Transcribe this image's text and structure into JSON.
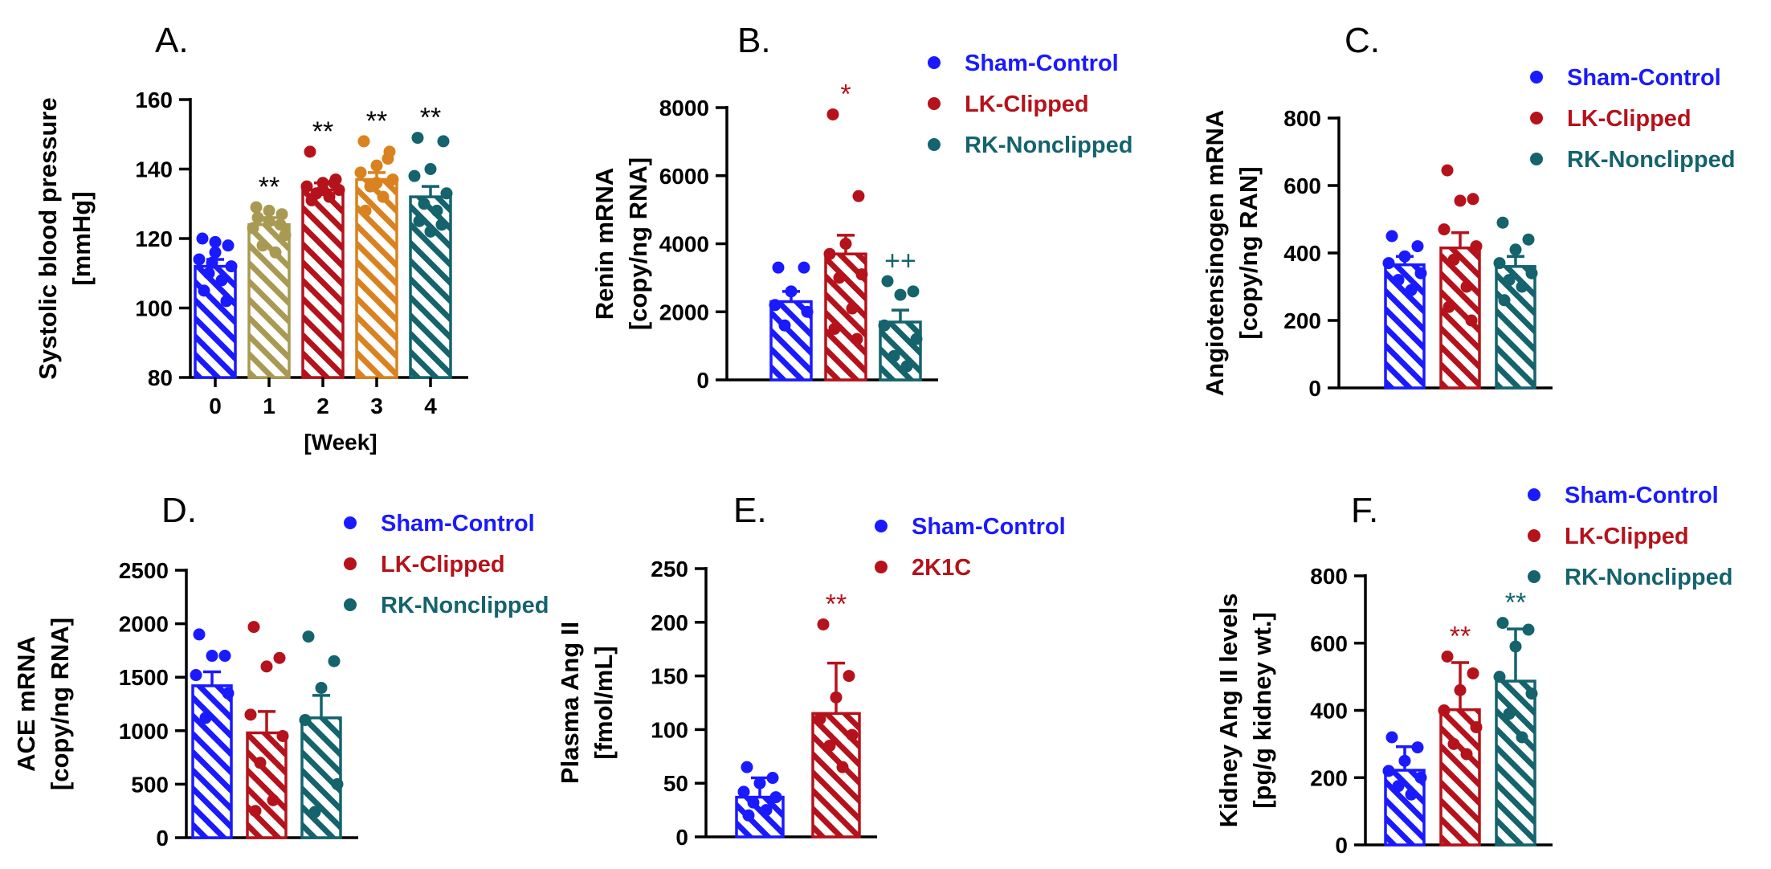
{
  "chart_data": [
    {
      "id": "A",
      "type": "bar",
      "panel_label": "A.",
      "ylabel_lines": [
        "Systolic blood pressure",
        "[mmHg]"
      ],
      "xlabel": "[Week]",
      "ylim": [
        80,
        160
      ],
      "yticks": [
        80,
        100,
        120,
        140,
        160
      ],
      "categories": [
        "0",
        "1",
        "2",
        "3",
        "4"
      ],
      "colors": [
        "#1a1aff",
        "#a89a52",
        "#b5121b",
        "#d9821f",
        "#14636d"
      ],
      "values": [
        112,
        124,
        134,
        137,
        132
      ],
      "errors": [
        2,
        2,
        2,
        2,
        3
      ],
      "points": [
        [
          120,
          118,
          116,
          114,
          112,
          110,
          108,
          105,
          102,
          119,
          113
        ],
        [
          129,
          127,
          125,
          123,
          121,
          118,
          116,
          126,
          124,
          128
        ],
        [
          145,
          137,
          136,
          135,
          134,
          133,
          132,
          131,
          136,
          134
        ],
        [
          148,
          145,
          141,
          139,
          137,
          135,
          132,
          128,
          143,
          136
        ],
        [
          149,
          148,
          140,
          138,
          133,
          130,
          128,
          125,
          124,
          122
        ]
      ],
      "annotations": [
        "",
        "**",
        "**",
        "**",
        "**"
      ],
      "annotation_colors": [
        "#000000",
        "#000000",
        "#000000",
        "#000000",
        "#000000"
      ],
      "legend": []
    },
    {
      "id": "B",
      "type": "bar",
      "panel_label": "B.",
      "ylabel_lines": [
        "Renin mRNA",
        "[copy/ng RNA]"
      ],
      "xlabel": "",
      "ylim": [
        0,
        8000
      ],
      "yticks": [
        0,
        2000,
        4000,
        6000,
        8000
      ],
      "categories": [
        "Sham-Control",
        "LK-Clipped",
        "RK-Nonclipped"
      ],
      "colors": [
        "#1a1aff",
        "#b5121b",
        "#14636d"
      ],
      "values": [
        2300,
        3700,
        1700
      ],
      "errors": [
        300,
        550,
        350
      ],
      "points": [
        [
          3300,
          3300,
          2600,
          2200,
          2000,
          1600
        ],
        [
          7800,
          5400,
          4000,
          3700,
          3100,
          3000,
          2100,
          1500,
          1200
        ],
        [
          2900,
          2600,
          2500,
          1600,
          1200,
          700,
          400
        ]
      ],
      "annotations": [
        "",
        "*",
        "++"
      ],
      "annotation_colors": [
        "#1a1aff",
        "#b5121b",
        "#14636d"
      ],
      "legend": [
        "Sham-Control",
        "LK-Clipped",
        "RK-Nonclipped"
      ]
    },
    {
      "id": "C",
      "type": "bar",
      "panel_label": "C.",
      "ylabel_lines": [
        "Angiotensinogen mRNA",
        "[copy/ng RAN]"
      ],
      "xlabel": "",
      "ylim": [
        0,
        800
      ],
      "yticks": [
        0,
        200,
        400,
        600,
        800
      ],
      "categories": [
        "Sham-Control",
        "LK-Clipped",
        "RK-Nonclipped"
      ],
      "colors": [
        "#1a1aff",
        "#b5121b",
        "#14636d"
      ],
      "values": [
        365,
        415,
        360
      ],
      "errors": [
        25,
        45,
        30
      ],
      "points": [
        [
          450,
          420,
          390,
          370,
          340,
          320,
          290
        ],
        [
          645,
          560,
          555,
          470,
          420,
          380,
          300,
          240,
          200
        ],
        [
          490,
          440,
          410,
          370,
          340,
          320,
          300,
          260
        ]
      ],
      "annotations": [
        "",
        "",
        ""
      ],
      "annotation_colors": [
        "#1a1aff",
        "#b5121b",
        "#14636d"
      ],
      "legend": [
        "Sham-Control",
        "LK-Clipped",
        "RK-Nonclipped"
      ]
    },
    {
      "id": "D",
      "type": "bar",
      "panel_label": "D.",
      "ylabel_lines": [
        "ACE mRNA",
        "[copy/ng RNA]"
      ],
      "xlabel": "",
      "ylim": [
        0,
        2500
      ],
      "yticks": [
        0,
        500,
        1000,
        1500,
        2000,
        2500
      ],
      "categories": [
        "Sham-Control",
        "LK-Clipped",
        "RK-Nonclipped"
      ],
      "colors": [
        "#1a1aff",
        "#b5121b",
        "#14636d"
      ],
      "values": [
        1420,
        980,
        1120
      ],
      "errors": [
        130,
        200,
        210
      ],
      "points": [
        [
          1900,
          1700,
          1700,
          1520,
          1350,
          1120
        ],
        [
          1970,
          1680,
          1600,
          1150,
          950,
          700,
          350,
          250
        ],
        [
          1880,
          1650,
          1400,
          1100,
          500,
          240
        ]
      ],
      "annotations": [
        "",
        "",
        ""
      ],
      "annotation_colors": [
        "#1a1aff",
        "#b5121b",
        "#14636d"
      ],
      "legend": [
        "Sham-Control",
        "LK-Clipped",
        "RK-Nonclipped"
      ]
    },
    {
      "id": "E",
      "type": "bar",
      "panel_label": "E.",
      "ylabel_lines": [
        "Plasma Ang II",
        "[fmol/mL]"
      ],
      "xlabel": "",
      "ylim": [
        0,
        250
      ],
      "yticks": [
        0,
        50,
        100,
        150,
        200,
        250
      ],
      "categories": [
        "Sham-Control",
        "2K1C"
      ],
      "colors": [
        "#1a1aff",
        "#b5121b"
      ],
      "values": [
        37,
        115
      ],
      "errors": [
        18,
        47
      ],
      "points": [
        [
          65,
          55,
          50,
          42,
          37,
          32,
          25,
          20
        ],
        [
          198,
          150,
          130,
          110,
          95,
          85,
          65
        ]
      ],
      "annotations": [
        "",
        "**"
      ],
      "annotation_colors": [
        "#1a1aff",
        "#b5121b"
      ],
      "legend": [
        "Sham-Control",
        "2K1C"
      ]
    },
    {
      "id": "F",
      "type": "bar",
      "panel_label": "F.",
      "ylabel_lines": [
        "Kidney Ang II levels",
        "[pg/g kidney wt.]"
      ],
      "xlabel": "",
      "ylim": [
        0,
        800
      ],
      "yticks": [
        0,
        200,
        400,
        600,
        800
      ],
      "categories": [
        "Sham-Control",
        "LK-Clipped",
        "RK-Nonclipped"
      ],
      "colors": [
        "#1a1aff",
        "#b5121b",
        "#14636d"
      ],
      "values": [
        222,
        402,
        487
      ],
      "errors": [
        70,
        140,
        155
      ],
      "points": [
        [
          320,
          290,
          250,
          220,
          200,
          175,
          150
        ],
        [
          560,
          510,
          460,
          400,
          350,
          300,
          270
        ],
        [
          660,
          640,
          590,
          500,
          450,
          390,
          320
        ]
      ],
      "annotations": [
        "",
        "**",
        "**"
      ],
      "annotation_colors": [
        "#1a1aff",
        "#b5121b",
        "#14636d"
      ],
      "legend": [
        "Sham-Control",
        "LK-Clipped",
        "RK-Nonclipped"
      ]
    }
  ]
}
